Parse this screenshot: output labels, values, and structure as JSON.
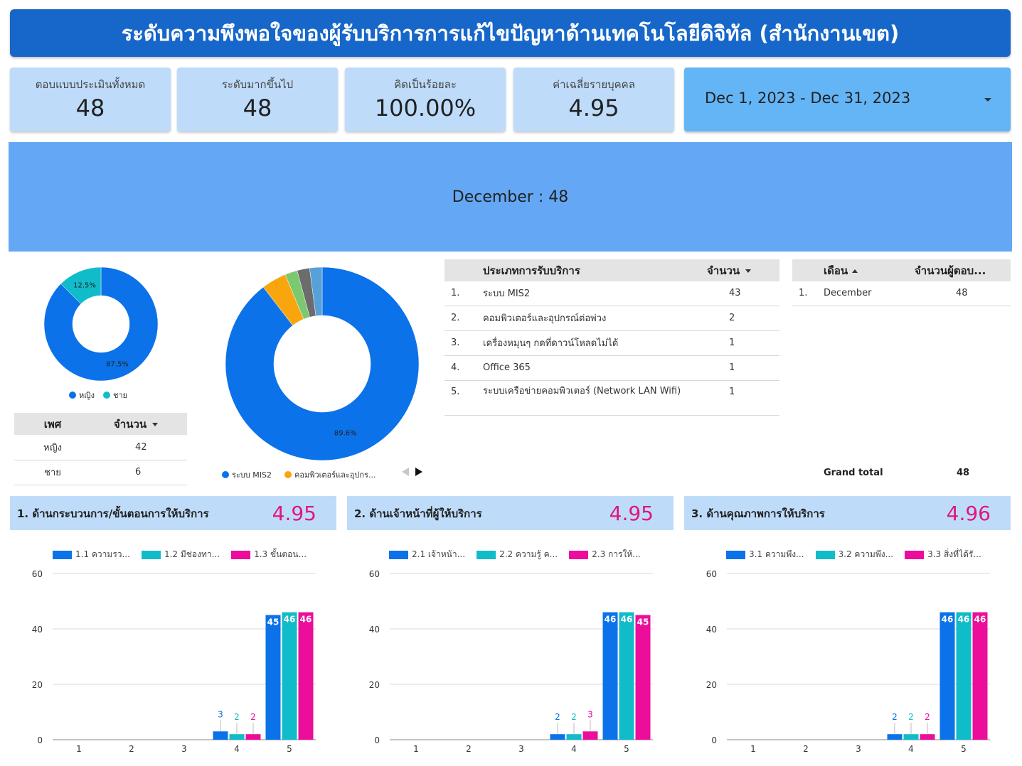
{
  "title": "ระดับความพึงพอใจของผู้รับบริการการแก้ไขปัญหาด้านเทคโนโลยีดิจิทัล (สำนักงานเขต)",
  "kpis": [
    {
      "label": "ตอบแบบประเมินทั้งหมด",
      "value": "48"
    },
    {
      "label": "ระดับมากขึ้นไป",
      "value": "48"
    },
    {
      "label": "คิดเป็นร้อยละ",
      "value": "100.00%"
    },
    {
      "label": "ค่าเฉลี่ยรายบุคคล",
      "value": "4.95"
    }
  ],
  "date_range": "Dec 1, 2023 - Dec 31, 2023",
  "month_banner": "December : 48",
  "colors": {
    "blue": "#0b72e9",
    "teal": "#10bcc9",
    "pink": "#ec0e9b",
    "orange": "#f9a60e",
    "green": "#7cc86f",
    "gray": "#6c6c6c",
    "lightblue": "#57a0d8"
  },
  "gender_table": {
    "headers": [
      "เพศ",
      "จำนวน"
    ],
    "rows": [
      [
        "หญิง",
        "42"
      ],
      [
        "ชาย",
        "6"
      ]
    ]
  },
  "service_table": {
    "headers": [
      "ประเภทการรับบริการ",
      "จำนวน"
    ],
    "rows": [
      [
        "1.",
        "ระบบ MIS2",
        "43"
      ],
      [
        "2.",
        "คอมพิวเตอร์และอุปกรณ์ต่อพ่วง",
        "2"
      ],
      [
        "3.",
        "เครื่องหมุนๆ กดที่ดาวน์โหลดไม่ได้",
        "1"
      ],
      [
        "4.",
        "Office 365",
        "1"
      ],
      [
        "5.",
        "ระบบเครือข่ายคอมพิวเตอร์ (Network LAN Wifi)",
        "1"
      ]
    ]
  },
  "month_table": {
    "headers": [
      "เดือน",
      "จำนวนผู้ตอบ..."
    ],
    "rows": [
      [
        "1.",
        "December",
        "48"
      ]
    ],
    "grand_total_label": "Grand total",
    "grand_total_value": "48"
  },
  "sections": [
    {
      "title": "1. ด้านกระบวนการ/ขั้นตอนการให้บริการ",
      "score": "4.95"
    },
    {
      "title": "2. ด้านเจ้าหน้าที่ผู้ให้บริการ",
      "score": "4.95"
    },
    {
      "title": "3. ด้านคุณภาพการให้บริการ",
      "score": "4.96"
    }
  ],
  "chart_data": [
    {
      "type": "pie",
      "labels": [
        "หญิง",
        "ชาย"
      ],
      "values": [
        42,
        6
      ],
      "slice_labels": [
        "87.5%",
        "12.5%"
      ],
      "colors": [
        "#0b72e9",
        "#10bcc9"
      ],
      "legend": [
        "หญิง",
        "ชาย"
      ]
    },
    {
      "type": "pie",
      "labels": [
        "ระบบ MIS2",
        "คอมพิวเตอร์และอุปกรณ์ต่อพ่วง",
        "เครื่องหมุนๆ กดที่ดาวน์โหลดไม่ได้",
        "Office 365",
        "ระบบเครือข่ายคอมพิวเตอร์ (Network LAN Wifi)"
      ],
      "values": [
        43,
        2,
        1,
        1,
        1
      ],
      "slice_labels": [
        "89.6%"
      ],
      "colors": [
        "#0b72e9",
        "#f9a60e",
        "#7cc86f",
        "#6c6c6c",
        "#57a0d8"
      ],
      "legend": [
        "ระบบ MIS2",
        "คอมพิวเตอร์และอุปกร..."
      ]
    },
    {
      "type": "bar",
      "categories": [
        "1",
        "2",
        "3",
        "4",
        "5"
      ],
      "ylim": [
        0,
        60
      ],
      "yticks": [
        0,
        20,
        40,
        60
      ],
      "series": [
        {
          "name": "1.1 ความรว...",
          "color": "#0b72e9",
          "values": [
            0,
            0,
            0,
            3,
            45
          ]
        },
        {
          "name": "1.2 มีช่องทา...",
          "color": "#10bcc9",
          "values": [
            0,
            0,
            0,
            2,
            46
          ]
        },
        {
          "name": "1.3 ขั้นตอน...",
          "color": "#ec0e9b",
          "values": [
            0,
            0,
            0,
            2,
            46
          ]
        }
      ]
    },
    {
      "type": "bar",
      "categories": [
        "1",
        "2",
        "3",
        "4",
        "5"
      ],
      "ylim": [
        0,
        60
      ],
      "yticks": [
        0,
        20,
        40,
        60
      ],
      "series": [
        {
          "name": "2.1 เจ้าหน้า...",
          "color": "#0b72e9",
          "values": [
            0,
            0,
            0,
            2,
            46
          ]
        },
        {
          "name": "2.2 ความรู้ ค...",
          "color": "#10bcc9",
          "values": [
            0,
            0,
            0,
            2,
            46
          ]
        },
        {
          "name": "2.3 การให้...",
          "color": "#ec0e9b",
          "values": [
            0,
            0,
            0,
            3,
            45
          ]
        }
      ]
    },
    {
      "type": "bar",
      "categories": [
        "1",
        "2",
        "3",
        "4",
        "5"
      ],
      "ylim": [
        0,
        60
      ],
      "yticks": [
        0,
        20,
        40,
        60
      ],
      "series": [
        {
          "name": "3.1 ความพึง...",
          "color": "#0b72e9",
          "values": [
            0,
            0,
            0,
            2,
            46
          ]
        },
        {
          "name": "3.2 ความพึง...",
          "color": "#10bcc9",
          "values": [
            0,
            0,
            0,
            2,
            46
          ]
        },
        {
          "name": "3.3 สิ่งที่ได้รั...",
          "color": "#ec0e9b",
          "values": [
            0,
            0,
            0,
            2,
            46
          ]
        }
      ]
    }
  ]
}
